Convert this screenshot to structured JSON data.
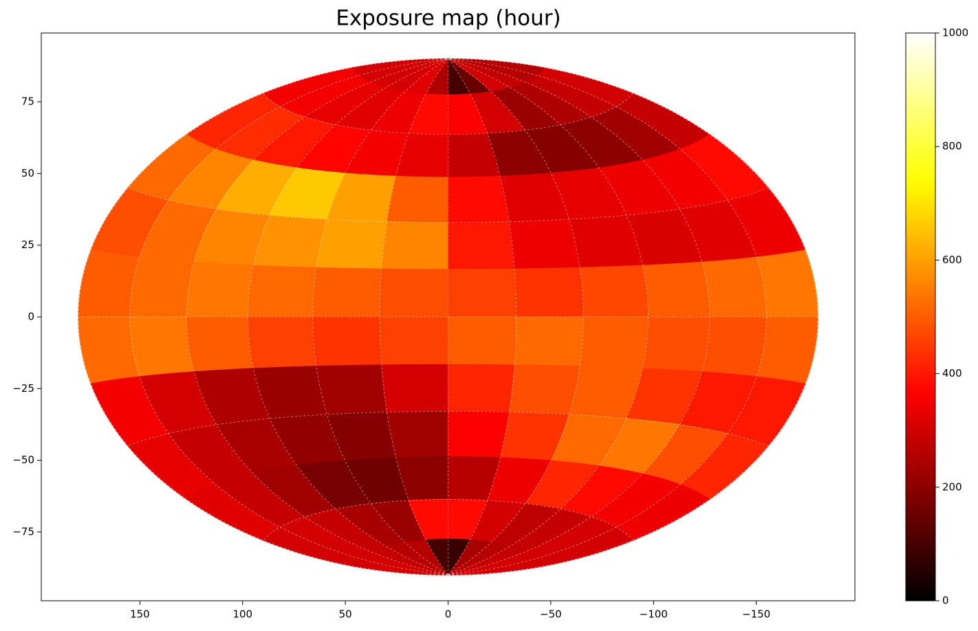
{
  "chart_data": {
    "type": "heatmap",
    "projection": "hammer",
    "title": "Exposure map (hour)",
    "colormap": "hot",
    "x_bins": [
      180,
      150,
      120,
      90,
      60,
      30,
      0,
      -30,
      -60,
      -90,
      -120,
      -150,
      -180
    ],
    "y_bins": [
      90,
      75,
      60,
      45,
      30,
      15,
      0,
      -15,
      -30,
      -45,
      -60,
      -75,
      -90
    ],
    "values": [
      [
        300,
        300,
        300,
        300,
        320,
        250,
        100,
        150,
        300,
        280,
        260,
        260
      ],
      [
        350,
        350,
        330,
        320,
        340,
        380,
        360,
        300,
        220,
        250,
        280,
        300
      ],
      [
        420,
        430,
        400,
        370,
        350,
        330,
        280,
        200,
        190,
        200,
        230,
        280
      ],
      [
        520,
        560,
        620,
        660,
        600,
        500,
        380,
        320,
        330,
        340,
        350,
        380
      ],
      [
        480,
        520,
        560,
        580,
        600,
        560,
        400,
        340,
        320,
        310,
        320,
        340
      ],
      [
        500,
        520,
        540,
        520,
        500,
        480,
        460,
        440,
        470,
        500,
        520,
        540
      ],
      [
        520,
        540,
        500,
        460,
        440,
        460,
        500,
        520,
        500,
        480,
        480,
        500
      ],
      [
        350,
        300,
        250,
        220,
        230,
        300,
        420,
        480,
        500,
        440,
        400,
        400
      ],
      [
        330,
        280,
        240,
        210,
        190,
        230,
        360,
        440,
        520,
        540,
        480,
        420
      ],
      [
        320,
        280,
        230,
        170,
        160,
        200,
        260,
        340,
        420,
        380,
        350,
        340
      ],
      [
        300,
        300,
        280,
        240,
        220,
        380,
        380,
        300,
        270,
        280,
        300,
        300
      ],
      [
        300,
        300,
        280,
        260,
        260,
        100,
        80,
        240,
        260,
        280,
        300,
        300
      ]
    ],
    "xlim": [
      198,
      -198
    ],
    "ylim": [
      -99,
      99
    ],
    "xticks": [
      150,
      100,
      50,
      0,
      {
        "value": -50,
        "label": "−50"
      },
      {
        "value": -100,
        "label": "−100"
      },
      {
        "value": -150,
        "label": "−150"
      }
    ],
    "yticks": [
      {
        "value": -75,
        "label": "−75"
      },
      {
        "value": -50,
        "label": "−50"
      },
      {
        "value": -25,
        "label": "−25"
      },
      0,
      25,
      50,
      75
    ],
    "clim": [
      0,
      1000
    ],
    "cticks": [
      0,
      200,
      400,
      600,
      800,
      1000
    ],
    "grid": true
  }
}
